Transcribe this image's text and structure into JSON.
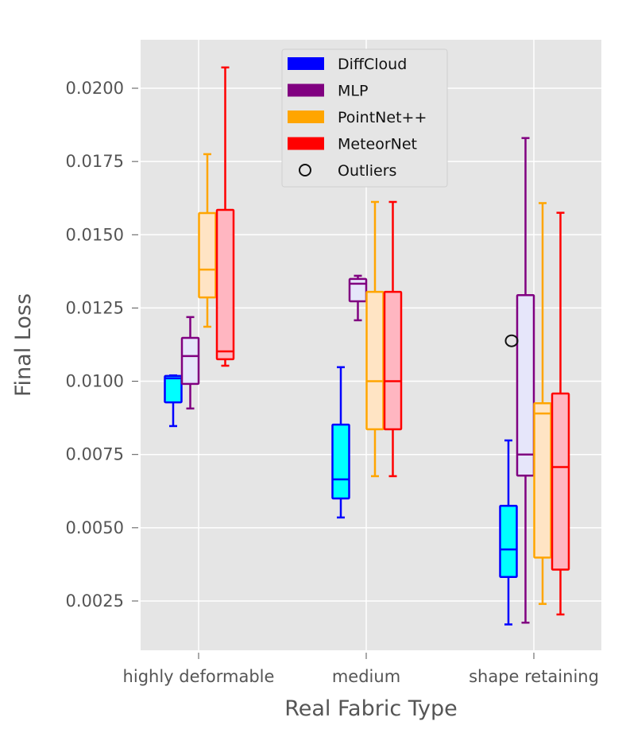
{
  "chart_data": {
    "type": "box",
    "title": "",
    "xlabel": "Real Fabric Type",
    "ylabel": "Final Loss",
    "ylim": [
      0.0008,
      0.0217
    ],
    "yticks": [
      "0.0025",
      "0.0050",
      "0.0075",
      "0.0100",
      "0.0125",
      "0.0150",
      "0.0175",
      "0.0200"
    ],
    "ytick_values": [
      0.0025,
      0.005,
      0.0075,
      0.01,
      0.0125,
      0.015,
      0.0175,
      0.02
    ],
    "categories": [
      "highly deformable",
      "medium",
      "shape retaining"
    ],
    "grid": true,
    "legend_position": "top-center",
    "series": [
      {
        "name": "DiffCloud",
        "edge": "#0000ff",
        "fill": "#00ffff",
        "boxes": [
          {
            "low": 0.00847,
            "q1": 0.00928,
            "median": 0.0101,
            "q3": 0.01018,
            "high": 0.0102
          },
          {
            "low": 0.00535,
            "q1": 0.006,
            "median": 0.00665,
            "q3": 0.00852,
            "high": 0.01048
          },
          {
            "low": 0.0017,
            "q1": 0.00332,
            "median": 0.00426,
            "q3": 0.00575,
            "high": 0.00798
          }
        ]
      },
      {
        "name": "MLP",
        "edge": "#800080",
        "fill": "#e6e6fa",
        "boxes": [
          {
            "low": 0.00907,
            "q1": 0.00991,
            "median": 0.01086,
            "q3": 0.01148,
            "high": 0.01219
          },
          {
            "low": 0.01208,
            "q1": 0.01273,
            "median": 0.01333,
            "q3": 0.01349,
            "high": 0.0136
          },
          {
            "low": 0.00176,
            "q1": 0.00678,
            "median": 0.0075,
            "q3": 0.01294,
            "high": 0.0183
          }
        ]
      },
      {
        "name": "PointNet++",
        "edge": "#ffa500",
        "fill": "#ffe4c4",
        "boxes": [
          {
            "low": 0.01186,
            "q1": 0.01286,
            "median": 0.01381,
            "q3": 0.01574,
            "high": 0.01775
          },
          {
            "low": 0.00676,
            "q1": 0.00836,
            "median": 0.01,
            "q3": 0.01305,
            "high": 0.01612
          },
          {
            "low": 0.0024,
            "q1": 0.00398,
            "median": 0.0089,
            "q3": 0.00925,
            "high": 0.01608
          }
        ]
      },
      {
        "name": "MeteorNet",
        "edge": "#ff0000",
        "fill": "#ffb6c1",
        "boxes": [
          {
            "low": 0.01053,
            "q1": 0.01075,
            "median": 0.01102,
            "q3": 0.01585,
            "high": 0.02071
          },
          {
            "low": 0.00676,
            "q1": 0.00836,
            "median": 0.01,
            "q3": 0.01305,
            "high": 0.01612
          },
          {
            "low": 0.00204,
            "q1": 0.00357,
            "median": 0.00707,
            "q3": 0.00958,
            "high": 0.01575
          }
        ]
      }
    ],
    "outliers": [
      {
        "category": "shape retaining",
        "series": "MLP",
        "value": 0.01138
      }
    ],
    "legend": [
      "DiffCloud",
      "MLP",
      "PointNet++",
      "MeteorNet",
      "Outliers"
    ]
  }
}
